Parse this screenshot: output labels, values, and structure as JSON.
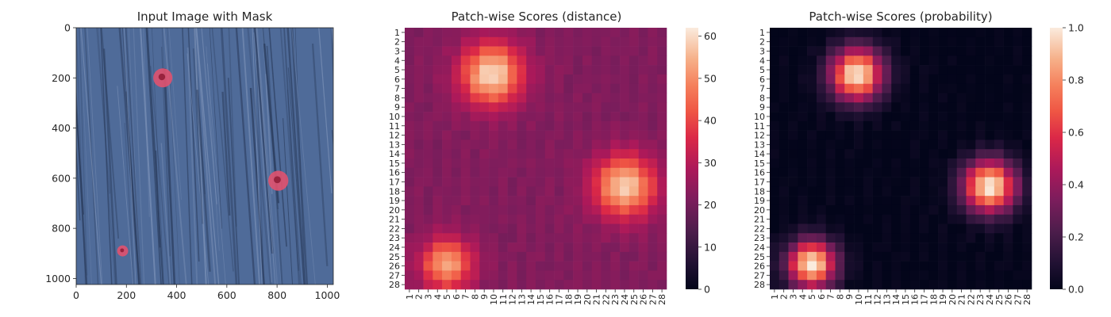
{
  "figure": {
    "background": "#ffffff",
    "text_color": "#262626"
  },
  "chart_data": [
    {
      "type": "image",
      "title": "Input Image with Mask",
      "xlabel": "",
      "ylabel": "",
      "xlim": [
        0,
        1024
      ],
      "ylim": [
        1024,
        0
      ],
      "xticks": [
        0,
        200,
        400,
        600,
        800,
        1000
      ],
      "yticks": [
        0,
        200,
        400,
        600,
        800,
        1000
      ],
      "image_description_colors": {
        "base": "#4f6b99",
        "dark_streak": "#2b3d5e",
        "light_streak": "#7d93b9",
        "mask": "#e0526f",
        "mask_core": "#8e1b35"
      },
      "masked_regions": [
        {
          "cx": 345,
          "cy": 200,
          "r": 38
        },
        {
          "cx": 805,
          "cy": 610,
          "r": 40
        },
        {
          "cx": 185,
          "cy": 890,
          "r": 22
        }
      ]
    },
    {
      "type": "heatmap",
      "title": "Patch-wise Scores (distance)",
      "xlabel": "",
      "ylabel": "",
      "rows": 28,
      "cols": 28,
      "tick_labels": [
        "1",
        "2",
        "3",
        "4",
        "5",
        "6",
        "7",
        "8",
        "9",
        "10",
        "11",
        "12",
        "13",
        "14",
        "15",
        "16",
        "17",
        "18",
        "19",
        "20",
        "21",
        "22",
        "23",
        "24",
        "25",
        "26",
        "27",
        "28"
      ],
      "colorbar": {
        "min": 0,
        "max": 62,
        "ticks": [
          0,
          10,
          20,
          30,
          40,
          50,
          60
        ]
      },
      "baseline": 22,
      "hotspots": [
        {
          "row": 5.5,
          "col": 9.8,
          "peak": 60,
          "sigma": 2.3
        },
        {
          "row": 17.5,
          "col": 24.0,
          "peak": 58,
          "sigma": 2.3
        },
        {
          "row": 25.8,
          "col": 5.0,
          "peak": 53,
          "sigma": 1.9
        }
      ]
    },
    {
      "type": "heatmap",
      "title": "Patch-wise Scores (probability)",
      "xlabel": "",
      "ylabel": "",
      "rows": 28,
      "cols": 28,
      "tick_labels": [
        "1",
        "2",
        "3",
        "4",
        "5",
        "6",
        "7",
        "8",
        "9",
        "10",
        "11",
        "12",
        "13",
        "14",
        "15",
        "16",
        "17",
        "18",
        "19",
        "20",
        "21",
        "22",
        "23",
        "24",
        "25",
        "26",
        "27",
        "28"
      ],
      "colorbar": {
        "min": 0.0,
        "max": 1.0,
        "ticks": [
          "0.0",
          "0.2",
          "0.4",
          "0.6",
          "0.8",
          "1.0"
        ]
      },
      "baseline": 0.0,
      "hotspots": [
        {
          "row": 5.5,
          "col": 9.8,
          "peak": 1.0,
          "sigma": 2.0
        },
        {
          "row": 17.5,
          "col": 24.0,
          "peak": 1.0,
          "sigma": 2.0
        },
        {
          "row": 25.8,
          "col": 5.0,
          "peak": 1.0,
          "sigma": 1.8
        }
      ]
    }
  ]
}
